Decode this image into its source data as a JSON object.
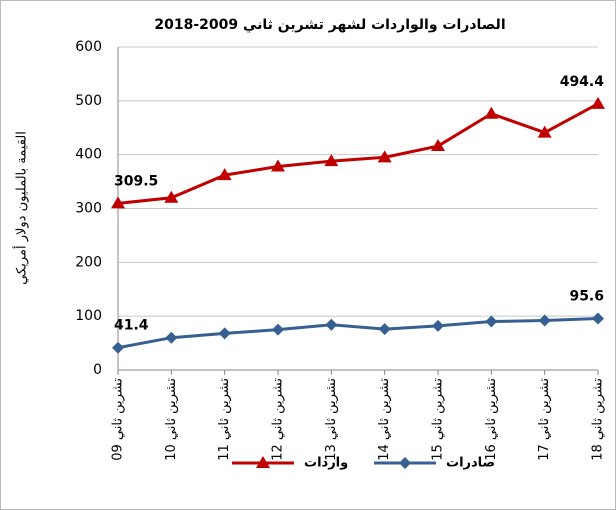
{
  "chart_data": {
    "type": "line",
    "title": "الصادرات والواردات لشهر تشرين ثاني 2009-2018",
    "y_label": "القيمة بالمليون دولار أمريكي",
    "categories": [
      "تشرين ثاني 09",
      "تشرين ثاني 10",
      "تشرين ثاني 11",
      "تشرين ثاني 12",
      "تشرين ثاني 13",
      "تشرين ثاني 14",
      "تشرين ثاني 15",
      "تشرين ثاني 16",
      "تشرين ثاني 17",
      "تشرين ثاني 18"
    ],
    "series": [
      {
        "name": "واردات",
        "color": "#c00000",
        "marker": "triangle",
        "values": [
          309.5,
          320,
          362,
          378,
          388,
          395,
          416,
          476,
          441,
          494.4
        ],
        "value_labels": [
          "309.5",
          null,
          null,
          null,
          null,
          null,
          null,
          null,
          null,
          "494.4"
        ]
      },
      {
        "name": "صادرات",
        "color": "#376092",
        "marker": "diamond",
        "values": [
          41.4,
          60,
          68,
          75,
          84,
          76,
          82,
          90,
          92,
          95.6
        ],
        "value_labels": [
          "41.4",
          null,
          null,
          null,
          null,
          null,
          null,
          null,
          null,
          "95.6"
        ]
      }
    ],
    "ylim": [
      0,
      600
    ],
    "yticks": [
      0,
      100,
      200,
      300,
      400,
      500,
      600
    ],
    "grid": true
  }
}
